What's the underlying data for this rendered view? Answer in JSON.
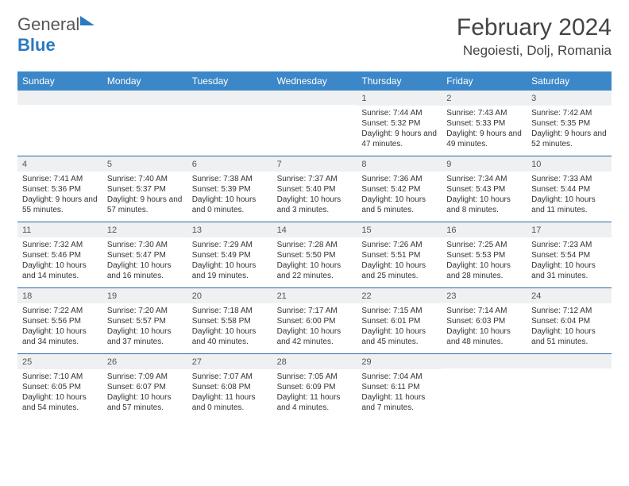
{
  "logo": {
    "text1": "General",
    "text2": "Blue"
  },
  "month_title": "February 2024",
  "location": "Negoiesti, Dolj, Romania",
  "colors": {
    "header_bg": "#3b87c8",
    "header_text": "#ffffff",
    "rule": "#2a6aa5",
    "daynum_bg": "#eef0f2",
    "body_text": "#333333",
    "logo_blue": "#2a7ac0"
  },
  "day_names": [
    "Sunday",
    "Monday",
    "Tuesday",
    "Wednesday",
    "Thursday",
    "Friday",
    "Saturday"
  ],
  "weeks": [
    [
      {
        "n": "",
        "sr": "",
        "ss": "",
        "dl": ""
      },
      {
        "n": "",
        "sr": "",
        "ss": "",
        "dl": ""
      },
      {
        "n": "",
        "sr": "",
        "ss": "",
        "dl": ""
      },
      {
        "n": "",
        "sr": "",
        "ss": "",
        "dl": ""
      },
      {
        "n": "1",
        "sr": "Sunrise: 7:44 AM",
        "ss": "Sunset: 5:32 PM",
        "dl": "Daylight: 9 hours and 47 minutes."
      },
      {
        "n": "2",
        "sr": "Sunrise: 7:43 AM",
        "ss": "Sunset: 5:33 PM",
        "dl": "Daylight: 9 hours and 49 minutes."
      },
      {
        "n": "3",
        "sr": "Sunrise: 7:42 AM",
        "ss": "Sunset: 5:35 PM",
        "dl": "Daylight: 9 hours and 52 minutes."
      }
    ],
    [
      {
        "n": "4",
        "sr": "Sunrise: 7:41 AM",
        "ss": "Sunset: 5:36 PM",
        "dl": "Daylight: 9 hours and 55 minutes."
      },
      {
        "n": "5",
        "sr": "Sunrise: 7:40 AM",
        "ss": "Sunset: 5:37 PM",
        "dl": "Daylight: 9 hours and 57 minutes."
      },
      {
        "n": "6",
        "sr": "Sunrise: 7:38 AM",
        "ss": "Sunset: 5:39 PM",
        "dl": "Daylight: 10 hours and 0 minutes."
      },
      {
        "n": "7",
        "sr": "Sunrise: 7:37 AM",
        "ss": "Sunset: 5:40 PM",
        "dl": "Daylight: 10 hours and 3 minutes."
      },
      {
        "n": "8",
        "sr": "Sunrise: 7:36 AM",
        "ss": "Sunset: 5:42 PM",
        "dl": "Daylight: 10 hours and 5 minutes."
      },
      {
        "n": "9",
        "sr": "Sunrise: 7:34 AM",
        "ss": "Sunset: 5:43 PM",
        "dl": "Daylight: 10 hours and 8 minutes."
      },
      {
        "n": "10",
        "sr": "Sunrise: 7:33 AM",
        "ss": "Sunset: 5:44 PM",
        "dl": "Daylight: 10 hours and 11 minutes."
      }
    ],
    [
      {
        "n": "11",
        "sr": "Sunrise: 7:32 AM",
        "ss": "Sunset: 5:46 PM",
        "dl": "Daylight: 10 hours and 14 minutes."
      },
      {
        "n": "12",
        "sr": "Sunrise: 7:30 AM",
        "ss": "Sunset: 5:47 PM",
        "dl": "Daylight: 10 hours and 16 minutes."
      },
      {
        "n": "13",
        "sr": "Sunrise: 7:29 AM",
        "ss": "Sunset: 5:49 PM",
        "dl": "Daylight: 10 hours and 19 minutes."
      },
      {
        "n": "14",
        "sr": "Sunrise: 7:28 AM",
        "ss": "Sunset: 5:50 PM",
        "dl": "Daylight: 10 hours and 22 minutes."
      },
      {
        "n": "15",
        "sr": "Sunrise: 7:26 AM",
        "ss": "Sunset: 5:51 PM",
        "dl": "Daylight: 10 hours and 25 minutes."
      },
      {
        "n": "16",
        "sr": "Sunrise: 7:25 AM",
        "ss": "Sunset: 5:53 PM",
        "dl": "Daylight: 10 hours and 28 minutes."
      },
      {
        "n": "17",
        "sr": "Sunrise: 7:23 AM",
        "ss": "Sunset: 5:54 PM",
        "dl": "Daylight: 10 hours and 31 minutes."
      }
    ],
    [
      {
        "n": "18",
        "sr": "Sunrise: 7:22 AM",
        "ss": "Sunset: 5:56 PM",
        "dl": "Daylight: 10 hours and 34 minutes."
      },
      {
        "n": "19",
        "sr": "Sunrise: 7:20 AM",
        "ss": "Sunset: 5:57 PM",
        "dl": "Daylight: 10 hours and 37 minutes."
      },
      {
        "n": "20",
        "sr": "Sunrise: 7:18 AM",
        "ss": "Sunset: 5:58 PM",
        "dl": "Daylight: 10 hours and 40 minutes."
      },
      {
        "n": "21",
        "sr": "Sunrise: 7:17 AM",
        "ss": "Sunset: 6:00 PM",
        "dl": "Daylight: 10 hours and 42 minutes."
      },
      {
        "n": "22",
        "sr": "Sunrise: 7:15 AM",
        "ss": "Sunset: 6:01 PM",
        "dl": "Daylight: 10 hours and 45 minutes."
      },
      {
        "n": "23",
        "sr": "Sunrise: 7:14 AM",
        "ss": "Sunset: 6:03 PM",
        "dl": "Daylight: 10 hours and 48 minutes."
      },
      {
        "n": "24",
        "sr": "Sunrise: 7:12 AM",
        "ss": "Sunset: 6:04 PM",
        "dl": "Daylight: 10 hours and 51 minutes."
      }
    ],
    [
      {
        "n": "25",
        "sr": "Sunrise: 7:10 AM",
        "ss": "Sunset: 6:05 PM",
        "dl": "Daylight: 10 hours and 54 minutes."
      },
      {
        "n": "26",
        "sr": "Sunrise: 7:09 AM",
        "ss": "Sunset: 6:07 PM",
        "dl": "Daylight: 10 hours and 57 minutes."
      },
      {
        "n": "27",
        "sr": "Sunrise: 7:07 AM",
        "ss": "Sunset: 6:08 PM",
        "dl": "Daylight: 11 hours and 0 minutes."
      },
      {
        "n": "28",
        "sr": "Sunrise: 7:05 AM",
        "ss": "Sunset: 6:09 PM",
        "dl": "Daylight: 11 hours and 4 minutes."
      },
      {
        "n": "29",
        "sr": "Sunrise: 7:04 AM",
        "ss": "Sunset: 6:11 PM",
        "dl": "Daylight: 11 hours and 7 minutes."
      },
      {
        "n": "",
        "sr": "",
        "ss": "",
        "dl": ""
      },
      {
        "n": "",
        "sr": "",
        "ss": "",
        "dl": ""
      }
    ]
  ]
}
